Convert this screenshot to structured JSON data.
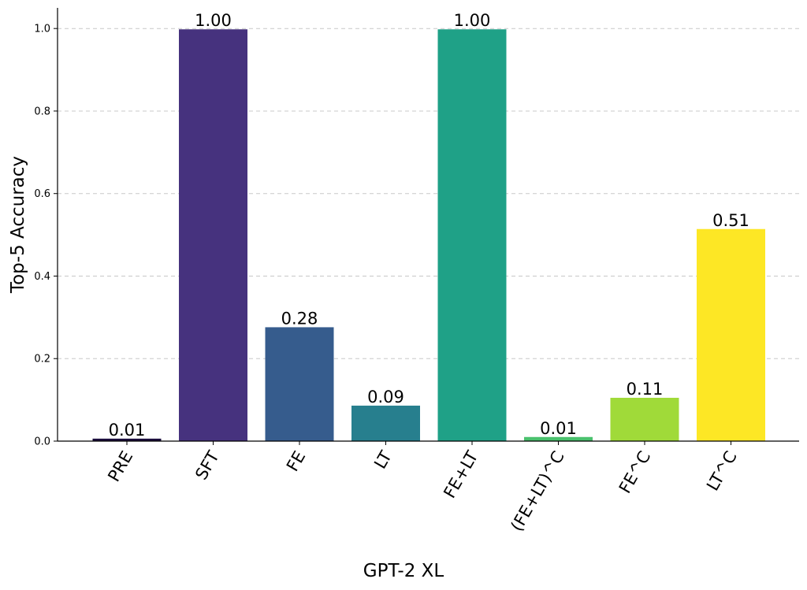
{
  "chart_data": {
    "type": "bar",
    "title": "",
    "xlabel": "GPT-2 XL",
    "ylabel": "Top-5 Accuracy",
    "categories": [
      "PRE",
      "SFT",
      "FE",
      "LT",
      "FE+LT",
      "(FE+LT)^C",
      "FE^C",
      "LT^C"
    ],
    "values": [
      0.006,
      0.998,
      0.276,
      0.086,
      0.998,
      0.01,
      0.105,
      0.514
    ],
    "value_labels": [
      "0.01",
      "1.00",
      "0.28",
      "0.09",
      "1.00",
      "0.01",
      "0.11",
      "0.51"
    ],
    "colors": [
      "#1a0c3b",
      "#46327e",
      "#365c8d",
      "#277f8e",
      "#1fa187",
      "#4ac16d",
      "#a0da39",
      "#fde725"
    ],
    "ylim": [
      0,
      1.05
    ],
    "yticks": [
      0.0,
      0.2,
      0.4,
      0.6,
      0.8,
      1.0
    ],
    "ytick_labels": [
      "0.0",
      "0.2",
      "0.4",
      "0.6",
      "0.8",
      "1.0"
    ],
    "grid": "y-dashed",
    "legend": "none"
  }
}
